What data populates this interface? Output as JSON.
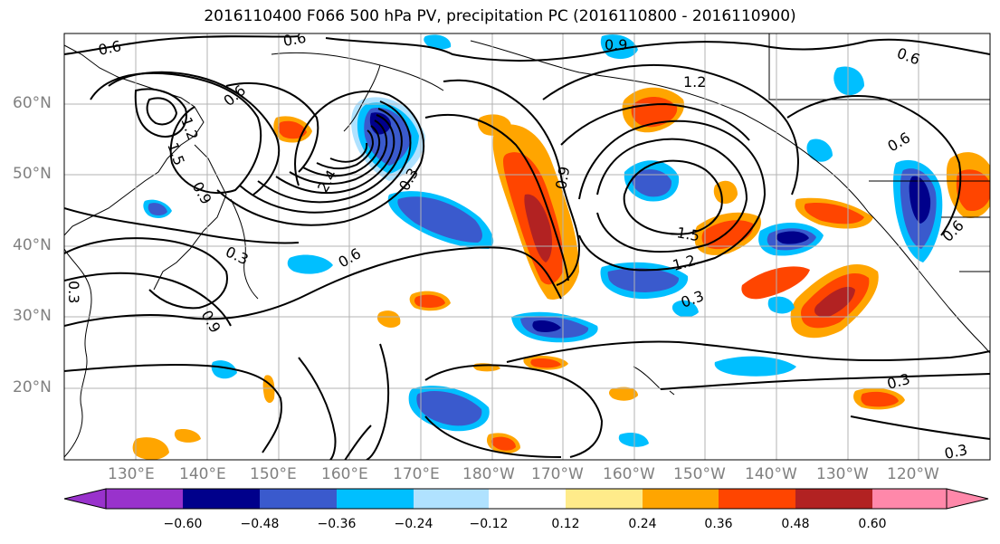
{
  "title": "2016110400 F066 500 hPa PV, precipitation PC (2016110800 - 2016110900)",
  "axes": {
    "lat_labels": [
      "60°N",
      "50°N",
      "40°N",
      "30°N",
      "20°N"
    ],
    "lon_labels": [
      "130°E",
      "140°E",
      "150°E",
      "160°E",
      "170°E",
      "180°W",
      "170°W",
      "160°W",
      "150°W",
      "140°W",
      "130°W",
      "120°W"
    ]
  },
  "contour_labels": [
    "0.6",
    "0.6",
    "0.9",
    "0.6",
    "1.2",
    "0.6",
    "0.6",
    "0.9",
    "1.5",
    "1.2",
    "0.3",
    "0.3",
    "0.6",
    "0.9",
    "0.3",
    "0.3",
    "2.4",
    "0.3",
    "1.2",
    "1.5",
    "0.6",
    "0.9",
    "0.3"
  ],
  "colorbar": {
    "ticks": [
      "−0.60",
      "−0.48",
      "−0.36",
      "−0.24",
      "−0.12",
      "0.12",
      "0.24",
      "0.36",
      "0.48",
      "0.60"
    ],
    "colors": [
      "#9932cc",
      "#00008b",
      "#3a5acd",
      "#00bfff",
      "#b0e2ff",
      "#ffffff",
      "#ffeb8a",
      "#ffa500",
      "#ff4500",
      "#b22222",
      "#ff88aa"
    ]
  },
  "colors": {
    "neg_dark": "#00008b",
    "neg_mid": "#3a5acd",
    "neg_light": "#00bfff",
    "neg_pale": "#b0e2ff",
    "pos_pale": "#ffeb8a",
    "pos_light": "#ffa500",
    "pos_mid": "#ff4500",
    "pos_dark": "#b22222"
  }
}
